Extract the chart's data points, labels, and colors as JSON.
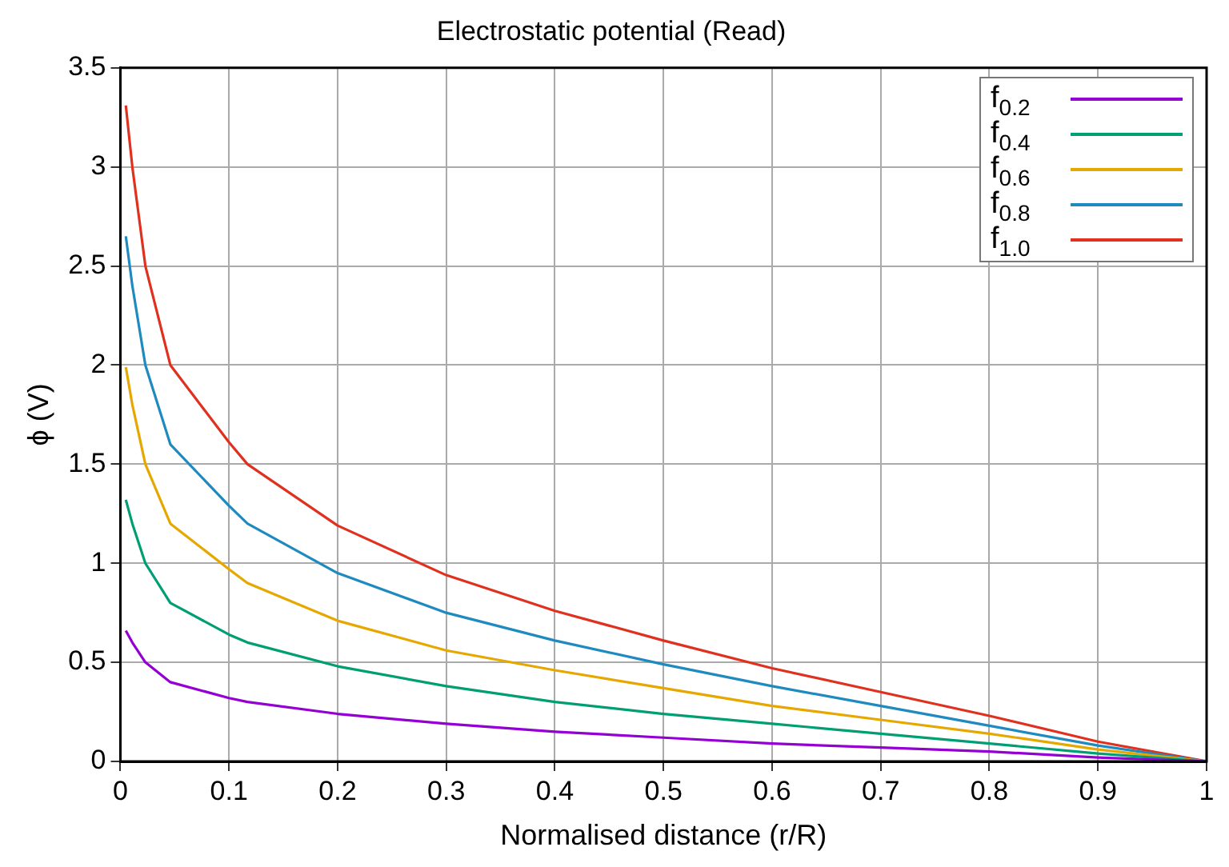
{
  "chart_data": {
    "type": "line",
    "title": "Electrostatic potential (Read)",
    "xlabel": "Normalised distance (r/R)",
    "ylabel": "ϕ (V)",
    "x": [
      0.005,
      0.011,
      0.023,
      0.046,
      0.1,
      0.117,
      0.2,
      0.3,
      0.4,
      0.5,
      0.6,
      0.7,
      0.8,
      0.9,
      1.0
    ],
    "series": [
      {
        "name": "f$_{0.2}$",
        "color": "#9400d3",
        "values": [
          0.66,
          0.6,
          0.5,
          0.4,
          0.32,
          0.3,
          0.24,
          0.19,
          0.15,
          0.12,
          0.09,
          0.07,
          0.05,
          0.02,
          0
        ]
      },
      {
        "name": "f$_{0.4}$",
        "color": "#009e73",
        "values": [
          1.32,
          1.2,
          1.0,
          0.8,
          0.64,
          0.6,
          0.48,
          0.38,
          0.3,
          0.24,
          0.19,
          0.14,
          0.09,
          0.04,
          0
        ]
      },
      {
        "name": "f$_{0.6}$",
        "color": "#e6a800",
        "values": [
          1.99,
          1.8,
          1.5,
          1.2,
          0.97,
          0.9,
          0.71,
          0.56,
          0.46,
          0.37,
          0.28,
          0.21,
          0.14,
          0.06,
          0
        ]
      },
      {
        "name": "f$_{0.8}$",
        "color": "#1f8ac0",
        "values": [
          2.65,
          2.4,
          2.0,
          1.6,
          1.29,
          1.2,
          0.95,
          0.75,
          0.61,
          0.49,
          0.38,
          0.28,
          0.18,
          0.08,
          0
        ]
      },
      {
        "name": "f$_{1.0}$",
        "color": "#e0301e",
        "values": [
          3.31,
          3.0,
          2.5,
          2.0,
          1.61,
          1.5,
          1.19,
          0.94,
          0.76,
          0.61,
          0.47,
          0.35,
          0.23,
          0.1,
          0
        ]
      }
    ],
    "xlim": [
      0,
      1
    ],
    "xticks": [
      0,
      0.1,
      0.2,
      0.3,
      0.4,
      0.5,
      0.6,
      0.7,
      0.8,
      0.9,
      1
    ],
    "ylim": [
      0,
      3.5
    ],
    "yticks": [
      0,
      0.5,
      1,
      1.5,
      2,
      2.5,
      3,
      3.5
    ],
    "grid": true,
    "legend": "top right",
    "marker": "none",
    "line_style": "solid"
  }
}
